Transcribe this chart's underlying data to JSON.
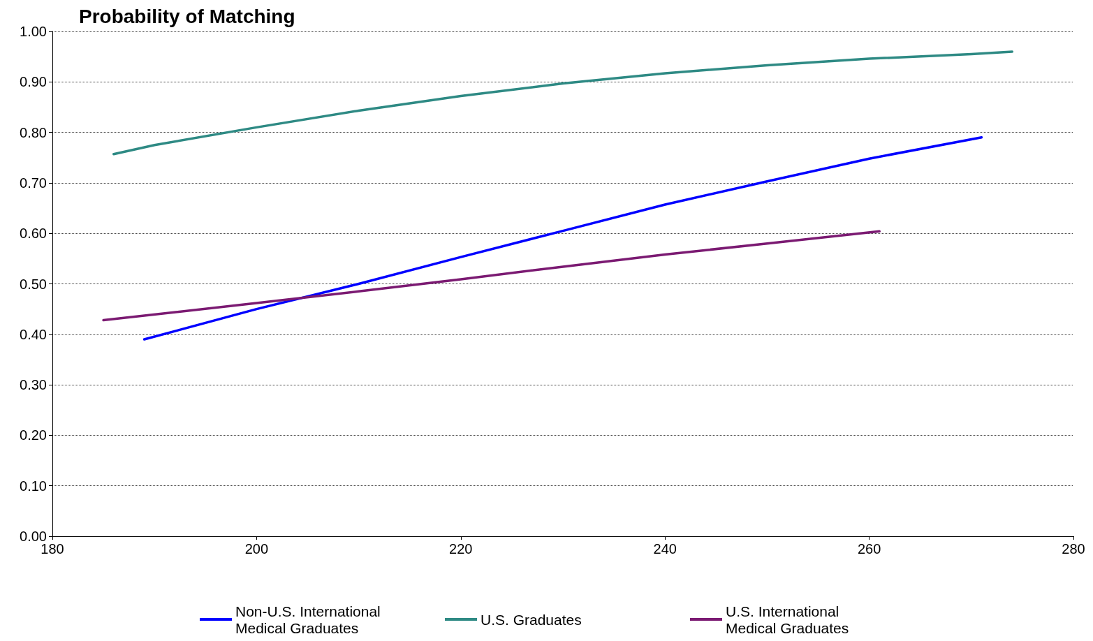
{
  "chart_data": {
    "type": "line",
    "title": "Probability of Matching",
    "xlim": [
      180,
      280
    ],
    "xticks": [
      180,
      200,
      220,
      240,
      260,
      280
    ],
    "ylim": [
      0,
      1
    ],
    "yticks": [
      {
        "value": 0,
        "label": "0.00"
      },
      {
        "value": 0.1,
        "label": "0.10"
      },
      {
        "value": 0.2,
        "label": "0.20"
      },
      {
        "value": 0.3,
        "label": "0.30"
      },
      {
        "value": 0.4,
        "label": "0.40"
      },
      {
        "value": 0.5,
        "label": "0.50"
      },
      {
        "value": 0.6,
        "label": "0.60"
      },
      {
        "value": 0.7,
        "label": "0.70"
      },
      {
        "value": 0.8,
        "label": "0.80"
      },
      {
        "value": 0.9,
        "label": "0.90"
      },
      {
        "value": 1,
        "label": "1.00"
      }
    ],
    "grid": "y",
    "legend": "bottom",
    "marker": "none",
    "line_style": "solid",
    "series": [
      {
        "name": "Non-U.S. International Medical Graduates",
        "color": "#0000ff",
        "x": [
          189,
          200,
          210,
          220,
          230,
          240,
          250,
          260,
          271
        ],
        "values": [
          0.39,
          0.45,
          0.5,
          0.553,
          0.605,
          0.657,
          0.703,
          0.748,
          0.79
        ]
      },
      {
        "name": "U.S. Graduates",
        "color": "#2e8a84",
        "x": [
          186,
          190,
          200,
          210,
          220,
          230,
          240,
          250,
          260,
          270,
          274
        ],
        "values": [
          0.757,
          0.775,
          0.81,
          0.843,
          0.872,
          0.897,
          0.917,
          0.933,
          0.946,
          0.955,
          0.96
        ]
      },
      {
        "name": "U.S. International Medical Graduates",
        "color": "#7b1a72",
        "x": [
          185,
          200,
          210,
          220,
          230,
          240,
          250,
          261
        ],
        "values": [
          0.428,
          0.462,
          0.485,
          0.509,
          0.534,
          0.558,
          0.58,
          0.604
        ]
      }
    ]
  }
}
